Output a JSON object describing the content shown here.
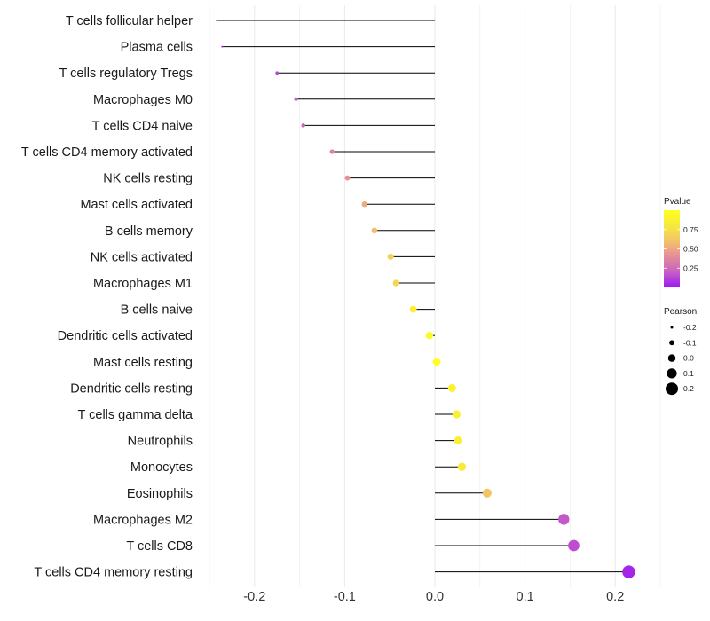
{
  "chart_data": {
    "type": "lollipop",
    "xlabel": "",
    "ylabel": "",
    "xlim": [
      -0.25,
      0.25
    ],
    "x_ticks": [
      -0.2,
      -0.1,
      0.0,
      0.1,
      0.2
    ],
    "x_tick_labels": [
      "-0.2",
      "-0.1",
      "0.0",
      "0.1",
      "0.2"
    ],
    "grid": true,
    "legend_position": "right",
    "categories": [
      "T cells follicular helper",
      "Plasma cells",
      "T cells regulatory  Tregs",
      "Macrophages M0",
      "T cells CD4 naive",
      "T cells CD4 memory activated",
      "NK cells resting",
      "Mast cells activated",
      "B cells memory",
      "NK cells activated",
      "Macrophages M1",
      "B cells naive",
      "Dendritic cells activated",
      "Mast cells resting",
      "Dendritic cells resting",
      "T cells gamma delta",
      "Neutrophils",
      "Monocytes",
      "Eosinophils",
      "Macrophages M2",
      "T cells CD8",
      "T cells CD4 memory resting"
    ],
    "pearson": [
      -0.242,
      -0.236,
      -0.175,
      -0.154,
      -0.146,
      -0.114,
      -0.097,
      -0.078,
      -0.067,
      -0.049,
      -0.043,
      -0.024,
      -0.006,
      0.002,
      0.019,
      0.024,
      0.026,
      0.03,
      0.058,
      0.143,
      0.154,
      0.215
    ],
    "pvalue": [
      0.06,
      0.07,
      0.12,
      0.2,
      0.22,
      0.35,
      0.42,
      0.52,
      0.58,
      0.68,
      0.72,
      0.85,
      0.96,
      0.99,
      0.88,
      0.86,
      0.85,
      0.83,
      0.62,
      0.18,
      0.15,
      0.04
    ],
    "colorbar": {
      "title": "Pvalue",
      "range": [
        0.0,
        1.0
      ],
      "ticks": [
        0.25,
        0.5,
        0.75
      ],
      "tick_labels": [
        "0.25",
        "0.50",
        "0.75"
      ],
      "colors": [
        "#9b17f5",
        "#c860c5",
        "#e58c98",
        "#f2c26a",
        "#f6e93e",
        "#ffff1e"
      ]
    },
    "size_legend": {
      "title": "Pearson",
      "values": [
        -0.2,
        -0.1,
        0.0,
        0.1,
        0.2
      ],
      "labels": [
        "-0.2",
        "-0.1",
        "0.0",
        "0.1",
        "0.2"
      ],
      "color": "#000000"
    },
    "stem_color": "#000000",
    "grid_color": "#ebebeb"
  }
}
